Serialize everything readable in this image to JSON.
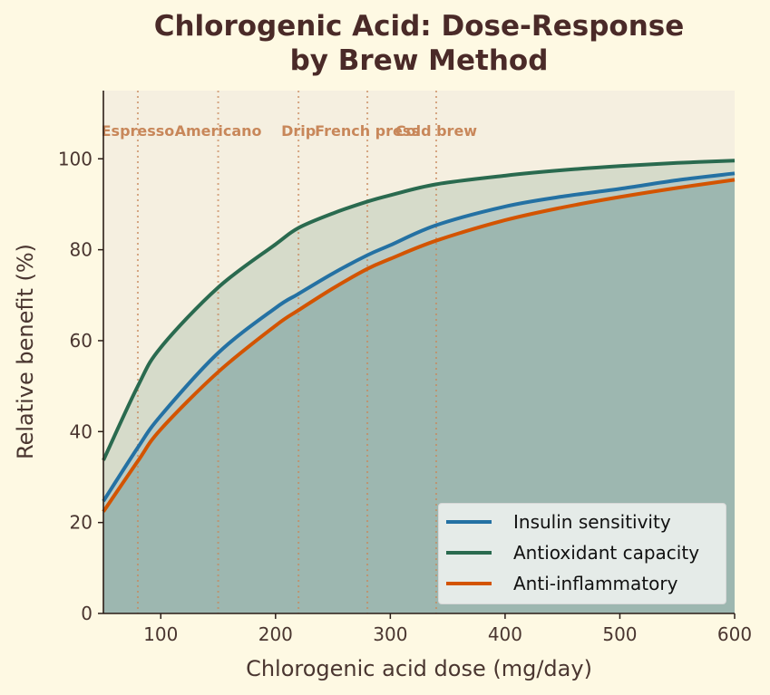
{
  "chart_data": {
    "type": "line",
    "title": "Chlorogenic Acid: Dose-Response by Brew Method",
    "title_lines": [
      "Chlorogenic Acid: Dose-Response",
      "by Brew Method"
    ],
    "xlabel": "Chlorogenic acid dose (mg/day)",
    "ylabel": "Relative benefit (%)",
    "xlim": [
      50,
      600
    ],
    "ylim": [
      0,
      115
    ],
    "xticks": [
      100,
      200,
      300,
      400,
      500,
      600
    ],
    "yticks": [
      0,
      20,
      40,
      60,
      80,
      100
    ],
    "grid": false,
    "legend_position": "lower right",
    "x": [
      50,
      80,
      100,
      150,
      200,
      220,
      250,
      280,
      300,
      340,
      400,
      450,
      500,
      550,
      600
    ],
    "series": [
      {
        "name": "Insulin sensitivity",
        "color": "#2471a3",
        "fill": true,
        "values": [
          24.7,
          36.5,
          43.5,
          57.3,
          67.2,
          70.3,
          74.8,
          78.8,
          81.0,
          85.4,
          89.5,
          91.7,
          93.4,
          95.3,
          96.8
        ]
      },
      {
        "name": "Antioxidant capacity",
        "color": "#2a6a4f",
        "fill": true,
        "values": [
          33.7,
          50.0,
          58.5,
          71.7,
          81.2,
          84.8,
          88.0,
          90.6,
          92.0,
          94.4,
          96.3,
          97.5,
          98.4,
          99.1,
          99.6
        ]
      },
      {
        "name": "Anti-inflammatory",
        "color": "#d35400",
        "fill": true,
        "values": [
          22.4,
          33.5,
          40.5,
          53.1,
          63.3,
          66.7,
          71.5,
          75.8,
          78.0,
          82.0,
          86.5,
          89.3,
          91.6,
          93.6,
          95.4
        ]
      }
    ],
    "annotations": [
      {
        "label": "Espresso",
        "x": 80
      },
      {
        "label": "Americano",
        "x": 150
      },
      {
        "label": "Drip",
        "x": 220
      },
      {
        "label": "French press",
        "x": 280
      },
      {
        "label": "Cold brew",
        "x": 340
      }
    ]
  },
  "legend": {
    "items": [
      {
        "label": "Insulin sensitivity",
        "color": "#2471a3"
      },
      {
        "label": "Antioxidant capacity",
        "color": "#2a6a4f"
      },
      {
        "label": "Anti-inflammatory",
        "color": "#d35400"
      }
    ]
  },
  "colors": {
    "page_bg": "#fef9e3",
    "plot_bg": "#f5efe0",
    "annotation": "#c8875a",
    "text": "#4a3630"
  }
}
